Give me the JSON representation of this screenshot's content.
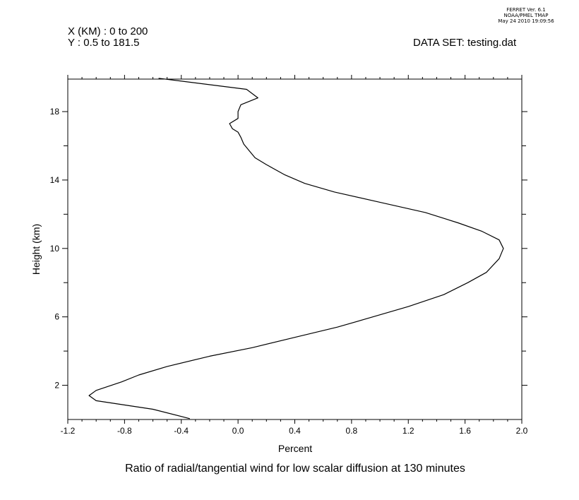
{
  "header": {
    "x_range": "X (KM) : 0 to 200",
    "y_range": "Y : 0.5 to 181.5",
    "dataset": "DATA SET: testing.dat",
    "stamp_line1": "FERRET Ver. 6.1",
    "stamp_line2": "NOAA/PMEL TMAP",
    "stamp_line3": "May 24 2010 19:09:56"
  },
  "chart_data": {
    "type": "line",
    "title": "Ratio of radial/tangential wind for low scalar diffusion at 130 minutes",
    "xlabel": "Percent",
    "ylabel": "Height (km)",
    "xlim": [
      -1.2,
      2.0
    ],
    "ylim": [
      0,
      19.9
    ],
    "x_ticks": [
      -1.2,
      -0.8,
      -0.4,
      0.0,
      0.4,
      0.8,
      1.2,
      1.6,
      2.0
    ],
    "x_tick_labels": [
      "-1.2",
      "-0.8",
      "-0.4",
      "0.0",
      "0.4",
      "0.8",
      "1.2",
      "1.6",
      "2.0"
    ],
    "y_major_ticks": [
      2,
      6,
      10,
      14,
      18
    ],
    "y_tick_labels": [
      "2",
      "6",
      "10",
      "14",
      "18"
    ],
    "y_minor_ticks": [
      4,
      8,
      12,
      16
    ],
    "grid": false,
    "series": [
      {
        "color": "#000000",
        "points": [
          [
            -0.34,
            0.05
          ],
          [
            -0.6,
            0.6
          ],
          [
            -1.0,
            1.1
          ],
          [
            -1.05,
            1.4
          ],
          [
            -1.0,
            1.7
          ],
          [
            -0.82,
            2.2
          ],
          [
            -0.7,
            2.6
          ],
          [
            -0.5,
            3.1
          ],
          [
            -0.2,
            3.7
          ],
          [
            0.1,
            4.2
          ],
          [
            0.4,
            4.8
          ],
          [
            0.7,
            5.4
          ],
          [
            0.95,
            6.0
          ],
          [
            1.2,
            6.6
          ],
          [
            1.45,
            7.3
          ],
          [
            1.62,
            8.0
          ],
          [
            1.75,
            8.6
          ],
          [
            1.84,
            9.4
          ],
          [
            1.87,
            10.0
          ],
          [
            1.84,
            10.5
          ],
          [
            1.72,
            11.0
          ],
          [
            1.55,
            11.5
          ],
          [
            1.32,
            12.1
          ],
          [
            1.0,
            12.7
          ],
          [
            0.68,
            13.3
          ],
          [
            0.47,
            13.8
          ],
          [
            0.33,
            14.3
          ],
          [
            0.2,
            14.9
          ],
          [
            0.12,
            15.3
          ],
          [
            0.08,
            15.7
          ],
          [
            0.04,
            16.1
          ],
          [
            0.02,
            16.5
          ],
          [
            0.0,
            16.8
          ],
          [
            -0.04,
            17.0
          ],
          [
            -0.06,
            17.3
          ],
          [
            0.0,
            17.6
          ],
          [
            0.0,
            18.0
          ],
          [
            0.02,
            18.4
          ],
          [
            0.14,
            18.8
          ],
          [
            0.06,
            19.3
          ],
          [
            -0.56,
            19.95
          ]
        ]
      }
    ]
  }
}
